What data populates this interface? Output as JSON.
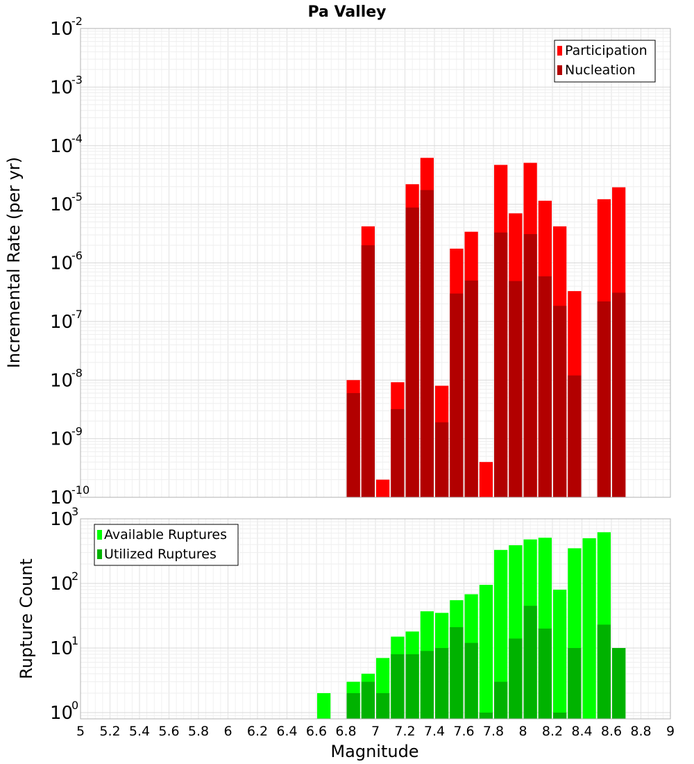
{
  "chart_data": {
    "type": "bar",
    "title": "Pa Valley",
    "xlabel": "Magnitude",
    "xlim": [
      5,
      9
    ],
    "x_ticks": [
      "5",
      "5.2",
      "5.4",
      "5.6",
      "5.8",
      "6",
      "6.2",
      "6.4",
      "6.6",
      "6.8",
      "7",
      "7.2",
      "7.4",
      "7.6",
      "7.8",
      "8",
      "8.2",
      "8.4",
      "8.6",
      "8.8",
      "9"
    ],
    "bin_width": 0.1,
    "grid": true,
    "panels": [
      {
        "ylabel": "Incremental Rate (per yr)",
        "yscale": "log",
        "ylim": [
          1e-10,
          0.01
        ],
        "y_tick_exponents": [
          "-10",
          "-9",
          "-8",
          "-7",
          "-6",
          "-5",
          "-4",
          "-3",
          "-2"
        ],
        "legend_position": "top-right",
        "colors": {
          "Participation": "#ff0000",
          "Nucleation": "#b20000"
        },
        "x": [
          6.85,
          6.95,
          7.05,
          7.15,
          7.25,
          7.35,
          7.45,
          7.55,
          7.65,
          7.75,
          7.85,
          7.95,
          8.05,
          8.15,
          8.25,
          8.35,
          8.55,
          8.65
        ],
        "series": [
          {
            "name": "Participation",
            "values": [
              1e-08,
              4.2e-06,
              2e-10,
              9.2e-09,
              2.2e-05,
              6.2e-05,
              8e-09,
              1.75e-06,
              3.4e-06,
              4e-10,
              4.7e-05,
              7e-06,
              5.1e-05,
              1.15e-05,
              4.2e-06,
              3.3e-07,
              1.22e-05,
              1.95e-05
            ]
          },
          {
            "name": "Nucleation",
            "values": [
              6e-09,
              2e-06,
              null,
              3.2e-09,
              8.8e-06,
              1.75e-05,
              1.9e-09,
              3e-07,
              5e-07,
              null,
              3.3e-06,
              4.9e-07,
              3.1e-06,
              5.9e-07,
              1.85e-07,
              1.2e-08,
              2.2e-07,
              3.1e-07
            ]
          }
        ]
      },
      {
        "ylabel": "Rupture Count",
        "yscale": "log",
        "ylim": [
          0.8,
          1000
        ],
        "y_tick_exponents": [
          "0",
          "1",
          "2",
          "3"
        ],
        "legend_position": "top-left",
        "colors": {
          "Available Ruptures": "#00ff00",
          "Utilized Ruptures": "#00b200"
        },
        "x": [
          6.65,
          6.85,
          6.95,
          7.05,
          7.15,
          7.25,
          7.35,
          7.45,
          7.55,
          7.65,
          7.75,
          7.85,
          7.95,
          8.05,
          8.15,
          8.25,
          8.35,
          8.45,
          8.55,
          8.65
        ],
        "series": [
          {
            "name": "Available Ruptures",
            "values": [
              2,
              3,
              4,
              7,
              15,
              18,
              37,
              35,
              55,
              68,
              95,
              330,
              390,
              480,
              510,
              80,
              350,
              500,
              620,
              10
            ]
          },
          {
            "name": "Utilized Ruptures",
            "values": [
              null,
              2,
              3,
              2,
              8,
              8,
              9,
              10,
              21,
              12,
              1,
              3,
              14,
              45,
              20,
              1,
              10,
              null,
              23,
              10
            ]
          }
        ]
      }
    ]
  }
}
